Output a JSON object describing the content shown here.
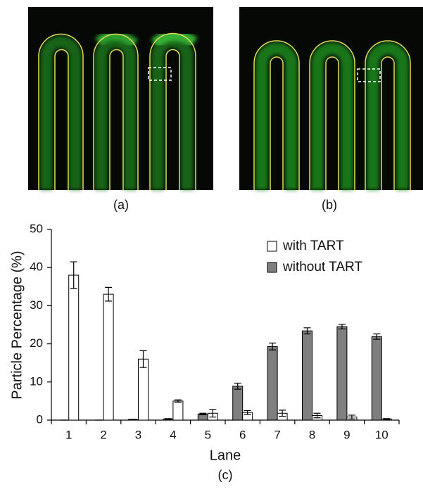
{
  "panel_labels": [
    "(a)",
    "(b)"
  ],
  "chart_data": {
    "type": "bar",
    "caption": "(c)",
    "x_label": "Lane",
    "y_label": "Particle Percentage (%)",
    "categories": [
      "1",
      "2",
      "3",
      "4",
      "5",
      "6",
      "7",
      "8",
      "9",
      "10"
    ],
    "series": [
      {
        "name": "without TART",
        "color": "#7f7f7f",
        "values": [
          0,
          0,
          0.2,
          0.3,
          1.6,
          8.9,
          19.3,
          23.4,
          24.5,
          21.9
        ],
        "errors": [
          0,
          0,
          0,
          0.1,
          0.2,
          0.8,
          0.9,
          0.8,
          0.6,
          0.7
        ]
      },
      {
        "name": "with TART",
        "color": "#ffffff",
        "values": [
          38,
          33,
          16,
          5,
          1.8,
          2,
          1.8,
          1.2,
          0.8,
          0.3
        ],
        "errors": [
          3.5,
          1.8,
          2.2,
          0.3,
          1,
          0.5,
          0.8,
          0.6,
          0.5,
          0.1
        ]
      }
    ],
    "ylim": [
      0,
      50
    ],
    "yticks": [
      0,
      10,
      20,
      30,
      40,
      50
    ],
    "legend": "top-right",
    "grid": false
  }
}
